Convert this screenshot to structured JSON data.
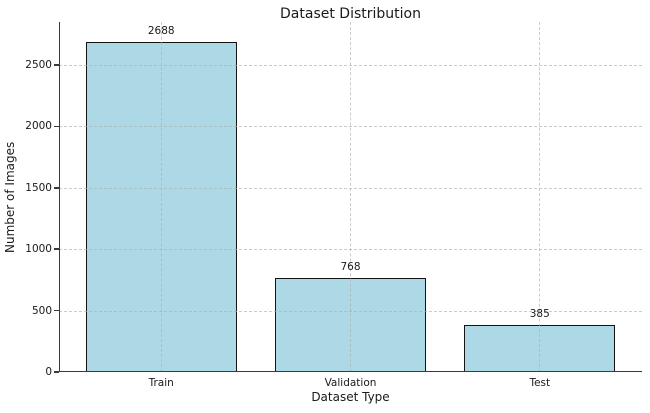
{
  "chart_data": {
    "type": "bar",
    "title": "Dataset Distribution",
    "xlabel": "Dataset Type",
    "ylabel": "Number of Images",
    "categories": [
      "Train",
      "Validation",
      "Test"
    ],
    "values": [
      2688,
      768,
      385
    ],
    "bar_value_labels": [
      "2688",
      "768",
      "385"
    ],
    "ylim": [
      0,
      2850
    ],
    "yticks": [
      0,
      500,
      1000,
      1500,
      2000,
      2500
    ],
    "grid": {
      "visible": true,
      "axis": "both",
      "linestyle": "dashed",
      "color": "#c8c8c8",
      "drawn_over_bars": true
    },
    "bar_color": "#ADD8E6",
    "bar_edge_color": "#141414",
    "bar_width_fraction": 0.8,
    "background_color": "#ffffff",
    "legend": false
  }
}
